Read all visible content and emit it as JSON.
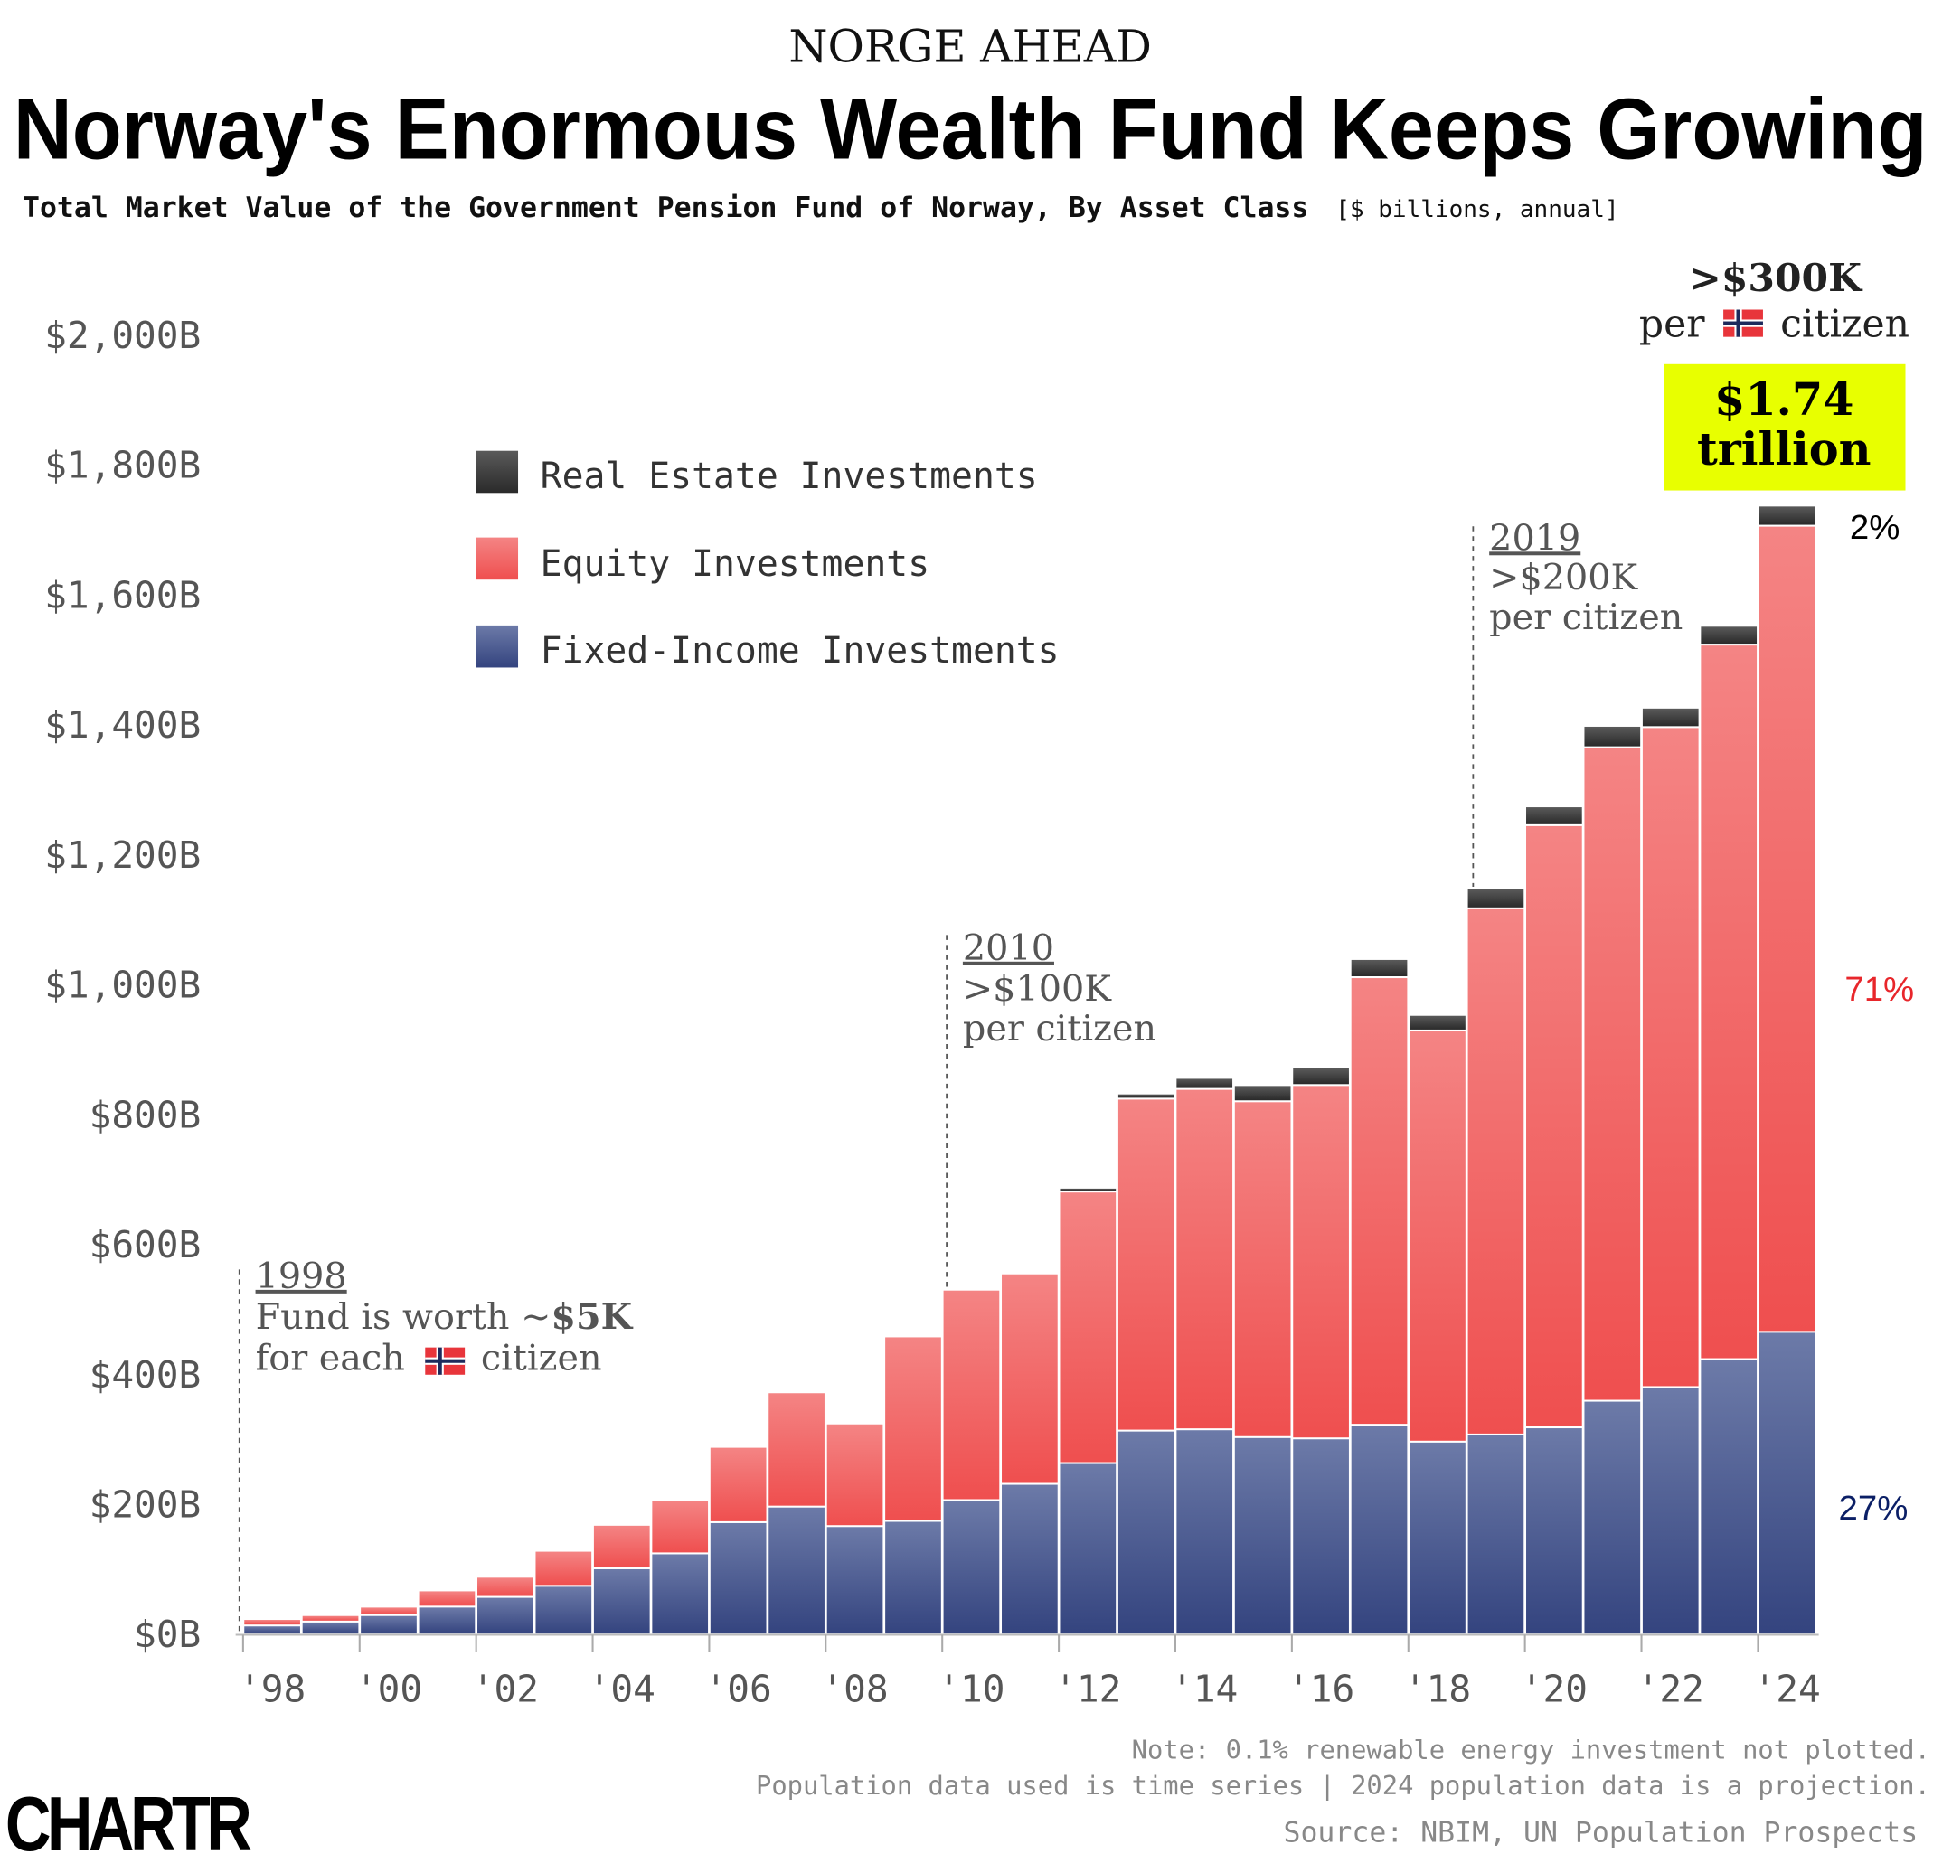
{
  "header": {
    "kicker": "NORGE AHEAD",
    "title": "Norway's Enormous Wealth Fund Keeps Growing",
    "subtitle": "Total Market Value of the Government Pension Fund of Norway, By Asset Class",
    "units": "[$ billions, annual]"
  },
  "colors": {
    "real_estate": "#3d3d3d",
    "equity": "#f06060",
    "fixed_income": "#3e4f8c",
    "highlight": "#e8ff00",
    "pct_equity": "#e8262b",
    "pct_fixed": "#0b1f66"
  },
  "chart_data": {
    "type": "bar",
    "stacked": true,
    "categories": [
      "1998",
      "1999",
      "2000",
      "2001",
      "2002",
      "2003",
      "2004",
      "2005",
      "2006",
      "2007",
      "2008",
      "2009",
      "2010",
      "2011",
      "2012",
      "2013",
      "2014",
      "2015",
      "2016",
      "2017",
      "2018",
      "2019",
      "2020",
      "2021",
      "2022",
      "2023",
      "2024"
    ],
    "x_tick_labels": [
      "'98",
      "'00",
      "'02",
      "'04",
      "'06",
      "'08",
      "'10",
      "'12",
      "'14",
      "'16",
      "'18",
      "'20",
      "'22",
      "'24"
    ],
    "y_tick_labels": [
      "$0B",
      "$200B",
      "$400B",
      "$600B",
      "$800B",
      "$1,000B",
      "$1,200B",
      "$1,400B",
      "$1,600B",
      "$1,800B",
      "$2,000B"
    ],
    "ylim": [
      0,
      2000
    ],
    "grid": false,
    "legend_position": "top-left",
    "series": [
      {
        "name": "Fixed-Income Investments",
        "values": [
          11,
          17,
          27,
          40,
          55,
          72,
          99,
          122,
          170,
          194,
          164,
          172,
          204,
          229,
          261,
          311,
          313,
          301,
          299,
          320,
          294,
          305,
          316,
          357,
          378,
          421,
          463
        ]
      },
      {
        "name": "Equity Investments",
        "values": [
          10,
          10,
          13,
          25,
          31,
          54,
          67,
          82,
          116,
          176,
          158,
          284,
          324,
          324,
          418,
          511,
          524,
          517,
          544,
          689,
          633,
          810,
          927,
          1006,
          1016,
          1100,
          1241
        ]
      },
      {
        "name": "Real Estate Investments",
        "values": [
          0,
          0,
          0,
          0,
          0,
          0,
          0,
          0,
          0,
          0,
          0,
          0,
          0,
          0,
          6,
          8,
          17,
          25,
          27,
          28,
          24,
          31,
          29,
          33,
          30,
          29,
          31
        ]
      }
    ],
    "end_shares": {
      "real_estate": "2%",
      "equity": "71%",
      "fixed_income": "27%"
    }
  },
  "annotations": {
    "a1998": {
      "year": "1998",
      "line1_pre": "Fund is worth ~",
      "line1_bold": "$5K",
      "line2_pre": "for each",
      "line2_post": "citizen"
    },
    "a2010": {
      "year": "2010",
      "line1": ">$100K",
      "line2": "per citizen"
    },
    "a2019": {
      "year": "2019",
      "line1": ">$200K",
      "line2": "per citizen"
    },
    "top": {
      "line1": ">$300K",
      "line2_pre": "per",
      "line2_post": "citizen"
    },
    "total": {
      "line1": "$1.74",
      "line2": "trillion"
    }
  },
  "footer": {
    "note1": "Note: 0.1% renewable energy investment not plotted.",
    "note2": "Population data used is time series | 2024 population data is a projection.",
    "source": "Source: NBIM, UN Population Prospects",
    "logo": "CHARTR"
  }
}
